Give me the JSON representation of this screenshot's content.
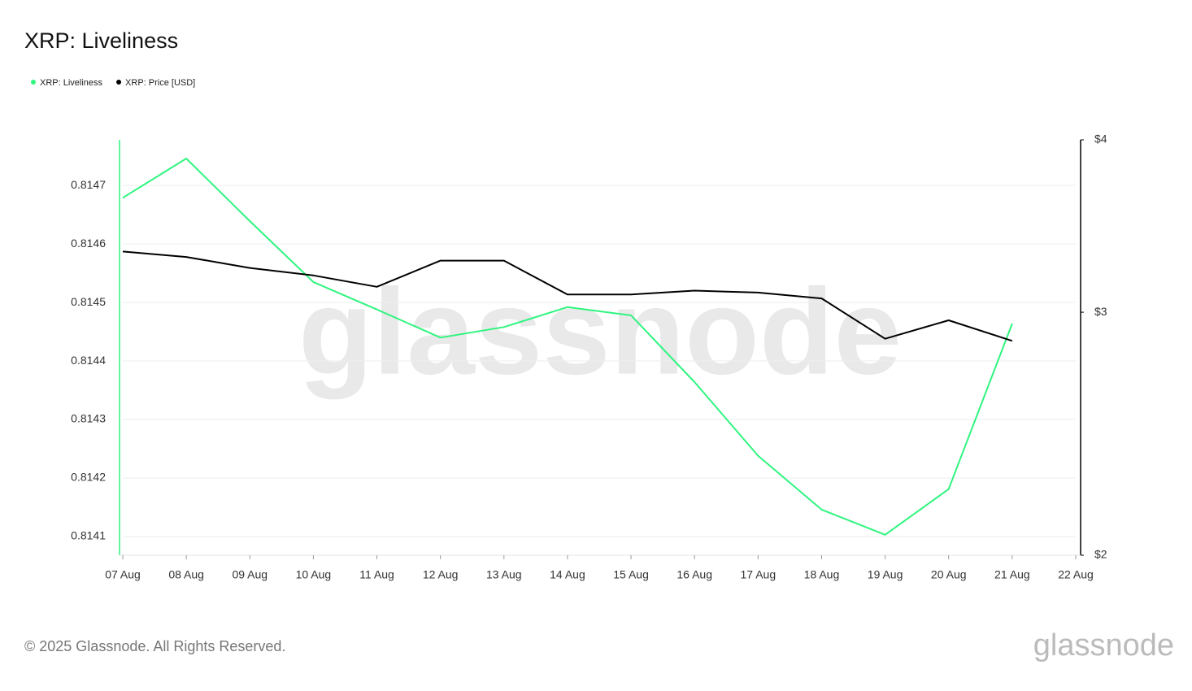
{
  "chart_data": {
    "type": "line",
    "title": "XRP: Liveliness",
    "categories": [
      "07 Aug",
      "08 Aug",
      "09 Aug",
      "10 Aug",
      "11 Aug",
      "12 Aug",
      "13 Aug",
      "14 Aug",
      "15 Aug",
      "16 Aug",
      "17 Aug",
      "18 Aug",
      "19 Aug",
      "20 Aug",
      "21 Aug",
      "22 Aug"
    ],
    "series": [
      {
        "name": "XRP: Liveliness",
        "color": "#2ff57f",
        "values": [
          0.814679,
          0.814746,
          0.814639,
          0.814535,
          0.814488,
          0.81444,
          0.814458,
          0.814492,
          0.814478,
          0.814364,
          0.814238,
          0.814146,
          0.814103,
          0.814181,
          0.814464,
          null
        ]
      },
      {
        "name": "XRP: Price [USD]",
        "color": "#000000",
        "axis": "y2",
        "values": [
          3.32,
          3.29,
          3.23,
          3.19,
          3.13,
          3.27,
          3.27,
          3.09,
          3.09,
          3.11,
          3.1,
          3.07,
          2.87,
          2.96,
          2.86,
          null
        ]
      }
    ],
    "ylim": [
      0.814068,
      0.814778
    ],
    "yticks": [
      0.8141,
      0.8142,
      0.8143,
      0.8144,
      0.8145,
      0.8146,
      0.8147
    ],
    "y2lim": [
      2,
      4
    ],
    "y2ticks": [
      {
        "value": 2,
        "label": "$2"
      },
      {
        "value": 3,
        "label": "$3"
      },
      {
        "value": 4,
        "label": "$4"
      }
    ],
    "y2log": true,
    "grid": true,
    "legend": "top-left",
    "watermark": "glassnode"
  },
  "footer": {
    "copyright": "© 2025 Glassnode. All Rights Reserved.",
    "logo": "glassnode"
  }
}
